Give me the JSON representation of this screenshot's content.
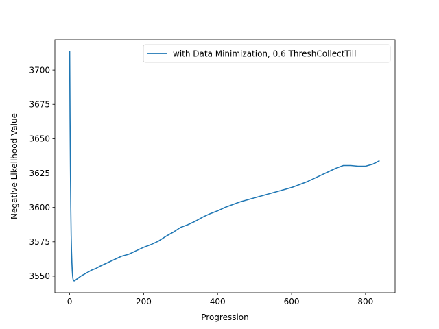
{
  "chart_data": {
    "type": "line",
    "title": "",
    "xlabel": "Progression",
    "ylabel": "Negative Likelihood Value",
    "xlim": [
      -40,
      880
    ],
    "ylim": [
      3538,
      3722
    ],
    "xticks": [
      0,
      200,
      400,
      600,
      800
    ],
    "yticks": [
      3550,
      3575,
      3600,
      3625,
      3650,
      3675,
      3700
    ],
    "grid": false,
    "legend_position": "upper right",
    "series": [
      {
        "name": "with Data Minimization, 0.6 ThreshCollectTill",
        "color": "#1f77b4",
        "points": [
          [
            0,
            3714
          ],
          [
            0.5,
            3690
          ],
          [
            1,
            3665
          ],
          [
            2,
            3630
          ],
          [
            3,
            3600
          ],
          [
            4,
            3580
          ],
          [
            5,
            3568
          ],
          [
            6,
            3560
          ],
          [
            7,
            3554
          ],
          [
            8,
            3550
          ],
          [
            9,
            3548
          ],
          [
            10,
            3547
          ],
          [
            12,
            3546.5
          ],
          [
            15,
            3547
          ],
          [
            20,
            3548
          ],
          [
            30,
            3550
          ],
          [
            40,
            3551.5
          ],
          [
            50,
            3553
          ],
          [
            60,
            3554.5
          ],
          [
            70,
            3555.5
          ],
          [
            80,
            3557
          ],
          [
            100,
            3559.5
          ],
          [
            120,
            3562
          ],
          [
            140,
            3564.5
          ],
          [
            160,
            3566
          ],
          [
            180,
            3568.5
          ],
          [
            200,
            3571
          ],
          [
            220,
            3573
          ],
          [
            240,
            3575.5
          ],
          [
            260,
            3579
          ],
          [
            280,
            3582
          ],
          [
            300,
            3585.5
          ],
          [
            320,
            3587.5
          ],
          [
            340,
            3590
          ],
          [
            360,
            3593
          ],
          [
            380,
            3595.5
          ],
          [
            400,
            3597.5
          ],
          [
            420,
            3600
          ],
          [
            440,
            3602
          ],
          [
            460,
            3604
          ],
          [
            480,
            3605.5
          ],
          [
            500,
            3607
          ],
          [
            520,
            3608.5
          ],
          [
            540,
            3610
          ],
          [
            560,
            3611.5
          ],
          [
            580,
            3613
          ],
          [
            600,
            3614.5
          ],
          [
            620,
            3616.5
          ],
          [
            640,
            3618.5
          ],
          [
            660,
            3621
          ],
          [
            680,
            3623.5
          ],
          [
            700,
            3626
          ],
          [
            720,
            3628.5
          ],
          [
            740,
            3630.5
          ],
          [
            760,
            3630.5
          ],
          [
            780,
            3630
          ],
          [
            800,
            3630
          ],
          [
            820,
            3631.5
          ],
          [
            838,
            3634
          ]
        ]
      }
    ]
  }
}
